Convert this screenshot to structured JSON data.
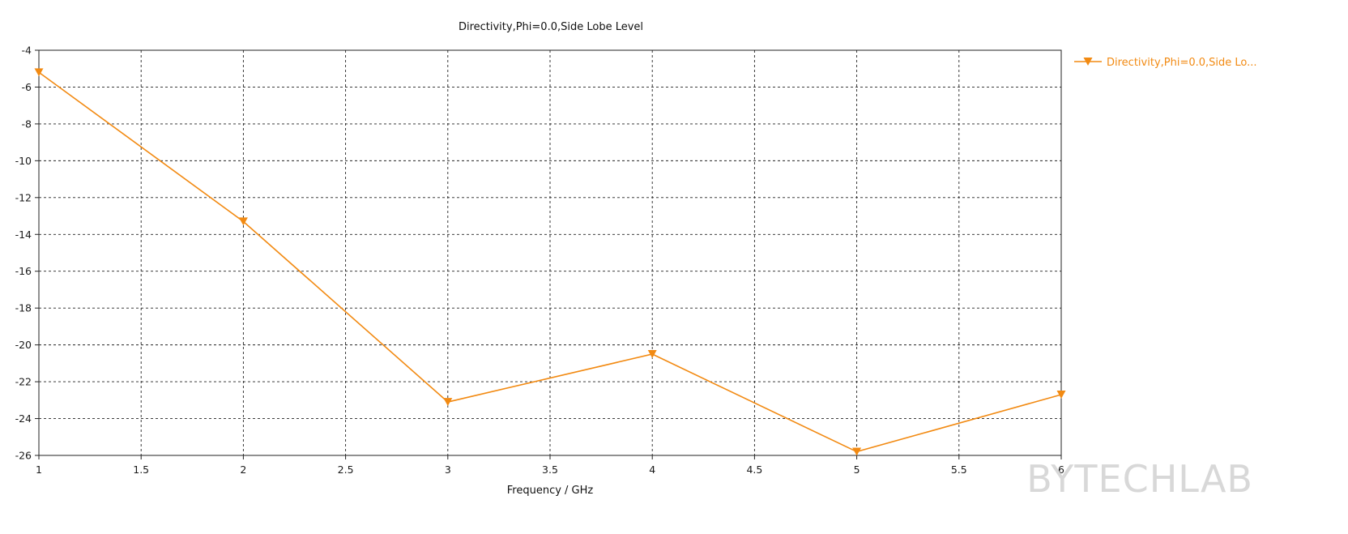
{
  "chart_data": {
    "type": "line",
    "title": "Directivity,Phi=0.0,Side Lobe Level",
    "xlabel": "Frequency / GHz",
    "ylabel": "",
    "xlim": [
      1,
      6
    ],
    "ylim": [
      -26,
      -4
    ],
    "x_ticks": [
      "1",
      "1.5",
      "2",
      "2.5",
      "3",
      "3.5",
      "4",
      "4.5",
      "5",
      "5.5",
      "6"
    ],
    "y_ticks": [
      "-4",
      "-6",
      "-8",
      "-10",
      "-12",
      "-14",
      "-16",
      "-18",
      "-20",
      "-22",
      "-24",
      "-26"
    ],
    "grid": true,
    "legend_position": "top-right",
    "series": [
      {
        "name": "Directivity,Phi=0.0,Side Lo...",
        "color": "#f28a12",
        "marker": "triangle-down",
        "x": [
          1,
          2,
          3,
          4,
          5,
          6
        ],
        "y": [
          -5.2,
          -13.3,
          -23.1,
          -20.5,
          -25.8,
          -22.7
        ]
      }
    ]
  },
  "watermark": "BYTECHLAB"
}
